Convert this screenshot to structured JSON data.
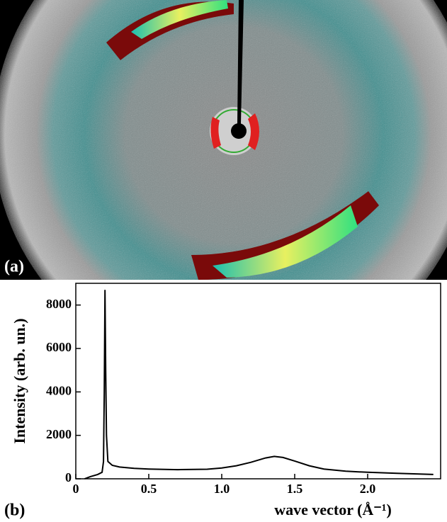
{
  "image_panel": {
    "label": "(a)"
  },
  "chart_data": {
    "type": "line",
    "panel_label": "(b)",
    "xlabel": "wave vector (Å⁻¹)",
    "ylabel": "Intensity (arb. un.)",
    "x": [
      0.06,
      0.1,
      0.15,
      0.18,
      0.19,
      0.195,
      0.2,
      0.205,
      0.21,
      0.22,
      0.25,
      0.3,
      0.4,
      0.5,
      0.7,
      0.9,
      1.0,
      1.1,
      1.2,
      1.3,
      1.36,
      1.42,
      1.5,
      1.6,
      1.7,
      1.85,
      2.0,
      2.2,
      2.45
    ],
    "y": [
      0,
      100,
      200,
      300,
      800,
      4000,
      8700,
      5000,
      2000,
      800,
      620,
      540,
      480,
      450,
      420,
      440,
      500,
      600,
      760,
      960,
      1030,
      980,
      820,
      600,
      450,
      350,
      300,
      250,
      200
    ],
    "color": "#000000",
    "xlim": [
      0,
      2.5
    ],
    "ylim": [
      0,
      9000
    ],
    "xticks": [
      0,
      {
        "value": 0.5,
        "label": "0.5"
      },
      {
        "value": 1,
        "label": "1.0"
      },
      1.5,
      {
        "value": 2,
        "label": "2.0"
      }
    ],
    "yticks": [
      0,
      2000,
      4000,
      6000,
      8000
    ]
  }
}
